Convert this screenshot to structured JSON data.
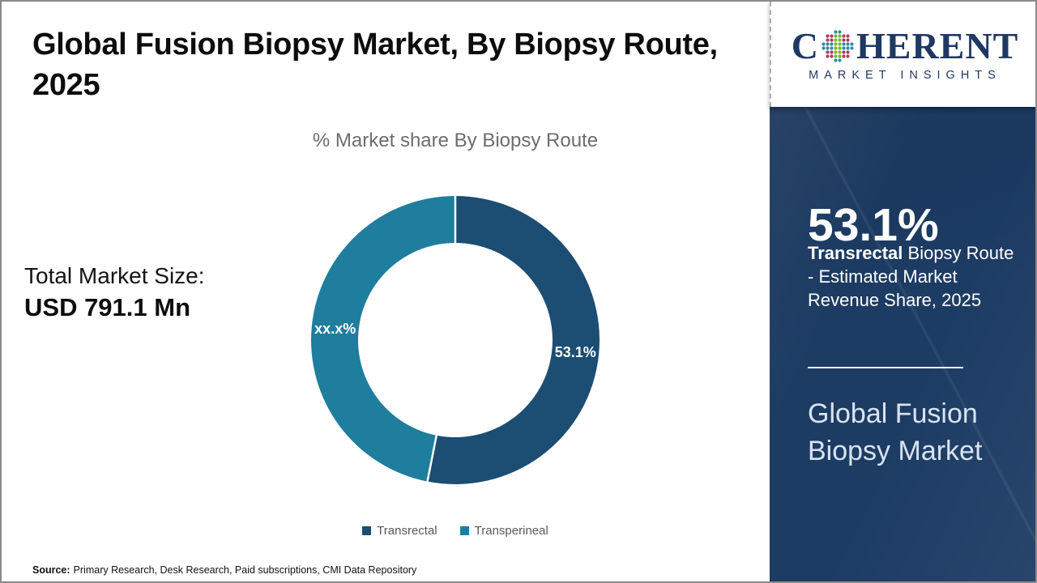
{
  "main": {
    "title_line1": "Global Fusion Biopsy Market, By Biopsy Route,",
    "title_line2": "2025",
    "chart_title": "% Market share By Biopsy Route",
    "total_label": "Total Market Size:",
    "total_value": "USD 791.1 Mn",
    "source_label": "Source:",
    "source_text": "Primary Research, Desk Research, Paid subscriptions, CMI Data Repository"
  },
  "chart_data": {
    "type": "pie",
    "subtype": "donut",
    "title": "% Market share By Biopsy Route",
    "categories": [
      "Transrectal",
      "Transperineal"
    ],
    "values": [
      53.1,
      46.9
    ],
    "display_labels": [
      "53.1%",
      "xx.x%"
    ],
    "colors": [
      "#1c4d72",
      "#1f7d9e"
    ],
    "start_angle_deg": 0,
    "direction": "clockwise",
    "legend_position": "bottom",
    "slice_label_color": "#ffffff",
    "geometry": {
      "outer_radius": 178,
      "inner_radius": 120
    }
  },
  "sidebar": {
    "logo": {
      "name": "Coherent Market Insights",
      "word_start": "C",
      "word_end": "HERENT",
      "subtitle": "MARKET INSIGHTS",
      "navy": "#1f3864",
      "globe_teal": "#2b8ba6",
      "globe_green": "#79b829",
      "globe_crimson": "#b13b63"
    },
    "stat_value": "53.1%",
    "stat_desc_bold": "Transrectal",
    "stat_desc_rest": " Biopsy Route - Estimated Market Revenue Share, 2025",
    "footer_title": "Global Fusion Biopsy Market",
    "background_color": "#1d3c64"
  }
}
